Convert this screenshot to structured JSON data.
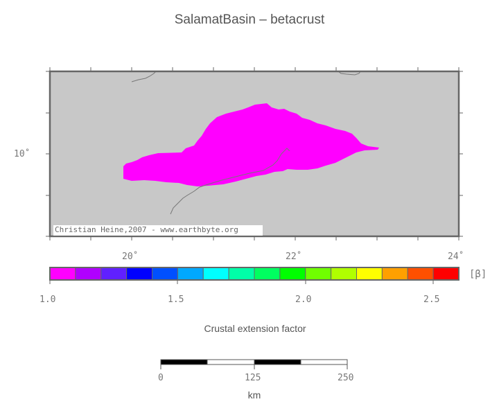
{
  "title": "SalamatBasin – betacrust",
  "map": {
    "credit": "Christian Heine,2007 - www.earthbyte.org",
    "lon_labels": [
      "20˚",
      "22˚",
      "24˚"
    ],
    "lat_labels": [
      "10˚"
    ],
    "background_color": "#c8c8c8",
    "basin_color": "#ff00ff"
  },
  "colorbar": {
    "unit_label": "[β]",
    "tick_labels": [
      "1.0",
      "1.5",
      "2.0",
      "2.5"
    ],
    "label": "Crustal extension factor",
    "colors": [
      "#ff00ff",
      "#b000ff",
      "#6020ff",
      "#0000ff",
      "#0050ff",
      "#00a8ff",
      "#00ffff",
      "#00ffa8",
      "#00ff60",
      "#00ff00",
      "#70ff00",
      "#b0ff00",
      "#ffff00",
      "#ffa000",
      "#ff5000",
      "#ff0000"
    ]
  },
  "scalebar": {
    "tick_labels": [
      "0",
      "125",
      "250"
    ],
    "unit": "km"
  }
}
